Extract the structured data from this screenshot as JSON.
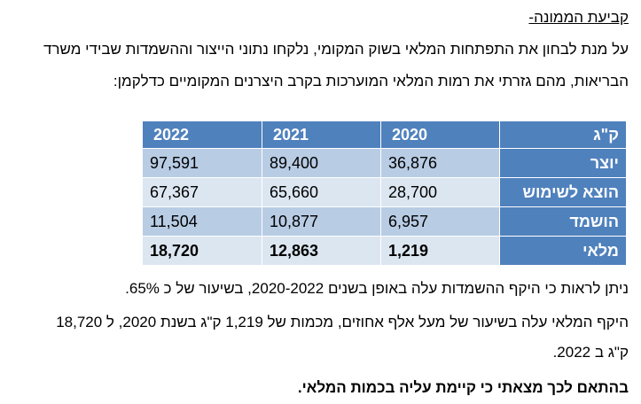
{
  "heading": "קביעת הממונה-",
  "intro": {
    "line1": "על מנת לבחון את התפתחות המלאי בשוק המקומי, נלקחו נתוני הייצור וההשמדות שבידי משרד",
    "line2": "הבריאות, מהם גזרתי את רמות המלאי המוערכות בקרב היצרנים המקומיים כדלקמן:"
  },
  "table": {
    "unit_label": "ק\"ג",
    "years": [
      "2020",
      "2021",
      "2022"
    ],
    "rows": [
      {
        "label": "יוצר",
        "values": [
          "36,876",
          "89,400",
          "97,591"
        ]
      },
      {
        "label": "הוצא לשימוש",
        "values": [
          "28,700",
          "65,660",
          "67,367"
        ]
      },
      {
        "label": "הושמד",
        "values": [
          "6,957",
          "10,877",
          "11,504"
        ]
      },
      {
        "label": "מלאי",
        "values": [
          "1,219",
          "12,863",
          "18,720"
        ]
      }
    ]
  },
  "observation": "ניתן לראות כי היקף ההשמדות עלה באופן בשנים 2020-2022, בשיעור של כ 65%.",
  "detail": {
    "line1": "היקף המלאי עלה בשיעור של מעל אלף אחוזים, מכמות של 1,219 ק\"ג בשנת 2020, ל 18,720",
    "line2": "ק\"ג ב 2022."
  },
  "conclusion": "בהתאם לכך מצאתי כי קיימת עליה בכמות המלאי."
}
